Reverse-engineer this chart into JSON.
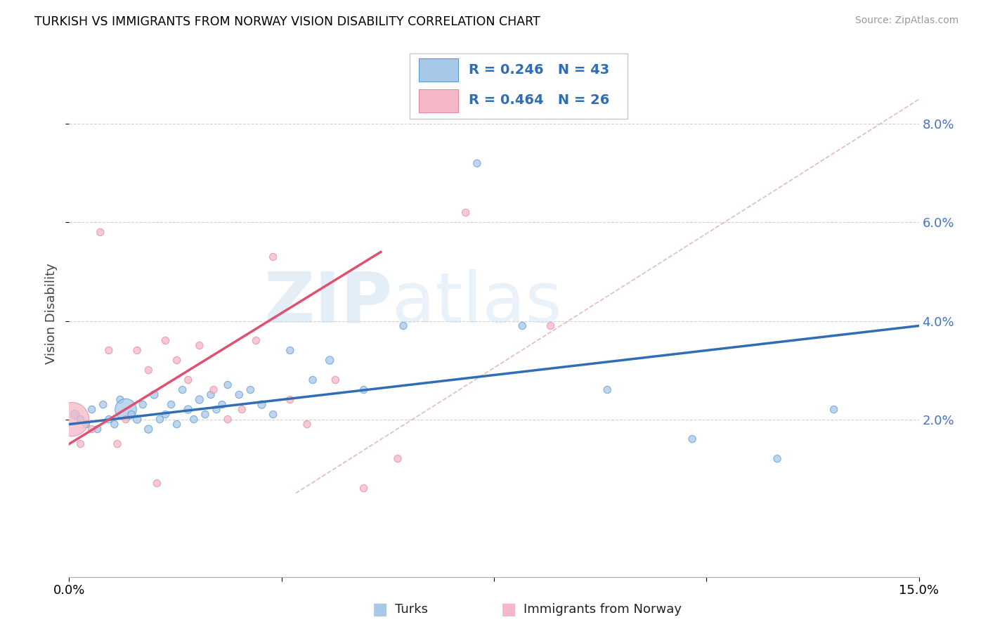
{
  "title": "TURKISH VS IMMIGRANTS FROM NORWAY VISION DISABILITY CORRELATION CHART",
  "source": "Source: ZipAtlas.com",
  "ylabel": "Vision Disability",
  "xlim": [
    0.0,
    15.0
  ],
  "ylim": [
    -1.2,
    9.5
  ],
  "ytick_vals": [
    2.0,
    4.0,
    6.0,
    8.0
  ],
  "ytick_labels": [
    "2.0%",
    "4.0%",
    "6.0%",
    "8.0%"
  ],
  "blue_R": "0.246",
  "blue_N": "43",
  "pink_R": "0.464",
  "pink_N": "26",
  "blue_color": "#a8c8e8",
  "pink_color": "#f4b8c8",
  "blue_edge_color": "#5b9bd5",
  "pink_edge_color": "#e8899a",
  "blue_line_color": "#2f6db5",
  "pink_line_color": "#e05070",
  "diag_line_color": "#ddaaaa",
  "ytick_color": "#4472c4",
  "legend_label_blue": "Turks",
  "legend_label_pink": "Immigrants from Norway",
  "turks_x": [
    0.1,
    0.2,
    0.3,
    0.4,
    0.5,
    0.6,
    0.7,
    0.8,
    0.9,
    1.0,
    1.1,
    1.2,
    1.3,
    1.4,
    1.5,
    1.6,
    1.7,
    1.8,
    1.9,
    2.0,
    2.1,
    2.2,
    2.3,
    2.4,
    2.5,
    2.6,
    2.7,
    2.8,
    3.0,
    3.2,
    3.4,
    3.6,
    3.9,
    4.3,
    4.6,
    5.2,
    5.9,
    7.2,
    8.0,
    9.5,
    11.0,
    12.5,
    13.5
  ],
  "turks_y": [
    2.1,
    2.0,
    1.9,
    2.2,
    1.8,
    2.3,
    2.0,
    1.9,
    2.4,
    2.2,
    2.1,
    2.0,
    2.3,
    1.8,
    2.5,
    2.0,
    2.1,
    2.3,
    1.9,
    2.6,
    2.2,
    2.0,
    2.4,
    2.1,
    2.5,
    2.2,
    2.3,
    2.7,
    2.5,
    2.6,
    2.3,
    2.1,
    3.4,
    2.8,
    3.2,
    2.6,
    3.9,
    7.2,
    3.9,
    2.6,
    1.6,
    1.2,
    2.2
  ],
  "turks_size": [
    35,
    25,
    25,
    25,
    25,
    25,
    25,
    25,
    25,
    220,
    25,
    30,
    25,
    30,
    30,
    25,
    25,
    25,
    25,
    25,
    30,
    25,
    30,
    25,
    25,
    25,
    25,
    25,
    25,
    25,
    30,
    25,
    25,
    25,
    30,
    25,
    25,
    25,
    25,
    25,
    25,
    25,
    25
  ],
  "norway_x": [
    0.05,
    0.2,
    0.4,
    0.55,
    0.7,
    0.85,
    1.0,
    1.2,
    1.4,
    1.55,
    1.7,
    1.9,
    2.1,
    2.3,
    2.55,
    2.8,
    3.05,
    3.3,
    3.6,
    3.9,
    4.2,
    4.7,
    5.2,
    5.8,
    7.0,
    8.5
  ],
  "norway_y": [
    2.0,
    1.5,
    1.8,
    5.8,
    3.4,
    1.5,
    2.0,
    3.4,
    3.0,
    0.7,
    3.6,
    3.2,
    2.8,
    3.5,
    2.6,
    2.0,
    2.2,
    3.6,
    5.3,
    2.4,
    1.9,
    2.8,
    0.6,
    1.2,
    6.2,
    3.9
  ],
  "norway_size": [
    550,
    25,
    25,
    25,
    25,
    25,
    25,
    25,
    25,
    25,
    25,
    25,
    25,
    25,
    25,
    25,
    25,
    25,
    25,
    25,
    25,
    25,
    25,
    25,
    25,
    25
  ],
  "blue_line_x0": 0.0,
  "blue_line_y0": 1.9,
  "blue_line_x1": 15.0,
  "blue_line_y1": 3.9,
  "pink_line_x0": 0.0,
  "pink_line_y0": 1.5,
  "pink_line_x1": 5.5,
  "pink_line_y1": 5.4,
  "diag_line_x0": 4.0,
  "diag_line_y0": 0.5,
  "diag_line_x1": 15.0,
  "diag_line_y1": 8.5
}
